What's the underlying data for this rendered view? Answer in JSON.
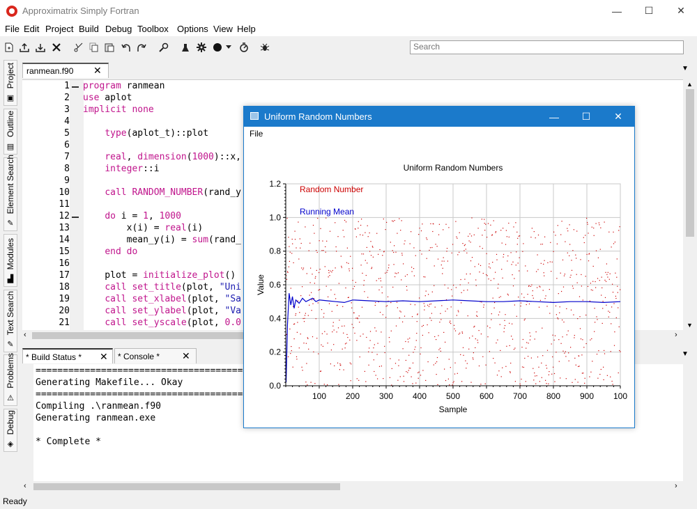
{
  "app": {
    "title": "Approximatrix Simply Fortran"
  },
  "window_controls": {
    "minimize": "—",
    "maximize": "☐",
    "close": "✕"
  },
  "menu": [
    "File",
    "Edit",
    "Project",
    "Build",
    "Debug",
    "Toolbox",
    "Options",
    "View",
    "Help"
  ],
  "search": {
    "placeholder": "Search"
  },
  "left_dock": [
    "Project",
    "Outline",
    "Element Search",
    "Modules",
    "Text Search",
    "Problems",
    "Debug"
  ],
  "editor": {
    "tab_label": "ranmean.f90",
    "line_numbers": [
      "1",
      "2",
      "3",
      "4",
      "5",
      "6",
      "7",
      "8",
      "9",
      "10",
      "11",
      "12",
      "13",
      "14",
      "15",
      "16",
      "17",
      "18",
      "19",
      "20",
      "21"
    ],
    "lines": [
      "program ranmean",
      "use aplot",
      "implicit none",
      "",
      "    type(aplot_t)::plot",
      "",
      "    real, dimension(1000)::x,",
      "    integer::i",
      "",
      "    call RANDOM_NUMBER(rand_y",
      "",
      "    do i = 1, 1000",
      "        x(i) = real(i)",
      "        mean_y(i) = sum(rand_",
      "    end do",
      "",
      "    plot = initialize_plot()",
      "    call set_title(plot, \"Uni",
      "    call set_xlabel(plot, \"Sa",
      "    call set_ylabel(plot, \"Va",
      "    call set_yscale(plot, 0.0"
    ]
  },
  "output": {
    "tabs": [
      "* Build Status *",
      "* Console *"
    ],
    "lines": [
      "================================================",
      "Generating Makefile... Okay",
      "================================================",
      "Compiling .\\ranmean.f90",
      "Generating ranmean.exe",
      "",
      "* Complete *"
    ]
  },
  "status": {
    "text": "Ready"
  },
  "plot_window": {
    "title": "Uniform Random Numbers",
    "menu_file": "File"
  },
  "colors": {
    "titlebar_blue": "#1b7acb",
    "keyword": "#c0148c",
    "string": "#1a1ab0",
    "random_series": "#cc0000",
    "mean_series": "#0000cc"
  },
  "chart_data": {
    "type": "scatter",
    "title": "Uniform Random Numbers",
    "xlabel": "Sample",
    "ylabel": "Value",
    "xlim": [
      0,
      1000
    ],
    "ylim": [
      0,
      1.2
    ],
    "x_ticks": [
      "100",
      "200",
      "300",
      "400",
      "500",
      "600",
      "700",
      "800",
      "900",
      "100"
    ],
    "y_ticks": [
      "0.0",
      "0.2",
      "0.4",
      "0.6",
      "0.8",
      "1.0",
      "1.2"
    ],
    "grid": true,
    "legend_position": "top-left",
    "series": [
      {
        "name": "Random Number",
        "kind": "points",
        "n": 1000,
        "distribution": "uniform",
        "range": [
          0,
          1
        ]
      },
      {
        "name": "Running Mean",
        "kind": "line",
        "x": [
          1,
          5,
          10,
          15,
          20,
          25,
          30,
          40,
          50,
          60,
          70,
          80,
          90,
          100,
          125,
          150,
          175,
          200,
          250,
          300,
          350,
          400,
          450,
          500,
          550,
          600,
          650,
          700,
          750,
          800,
          850,
          900,
          950,
          1000
        ],
        "y": [
          0.02,
          0.36,
          0.55,
          0.48,
          0.53,
          0.46,
          0.51,
          0.49,
          0.52,
          0.5,
          0.51,
          0.52,
          0.5,
          0.51,
          0.505,
          0.5,
          0.495,
          0.51,
          0.505,
          0.5,
          0.505,
          0.5,
          0.505,
          0.51,
          0.505,
          0.5,
          0.5,
          0.505,
          0.5,
          0.495,
          0.5,
          0.5,
          0.495,
          0.5
        ]
      }
    ]
  }
}
